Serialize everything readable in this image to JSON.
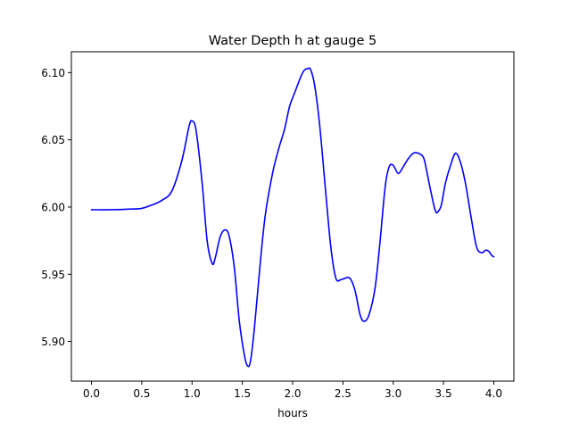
{
  "chart_data": {
    "type": "line",
    "title": "Water Depth h at gauge 5",
    "xlabel": "hours",
    "ylabel": "",
    "xlim": [
      -0.2,
      4.2
    ],
    "ylim": [
      5.8705,
      6.1155
    ],
    "grid": false,
    "legend": "none",
    "x_ticks": [
      0.0,
      0.5,
      1.0,
      1.5,
      2.0,
      2.5,
      3.0,
      3.5,
      4.0
    ],
    "x_tick_labels": [
      "0.0",
      "0.5",
      "1.0",
      "1.5",
      "2.0",
      "2.5",
      "3.0",
      "3.5",
      "4.0"
    ],
    "y_ticks": [
      5.9,
      5.95,
      6.0,
      6.05,
      6.1
    ],
    "y_tick_labels": [
      "5.90",
      "5.95",
      "6.00",
      "6.05",
      "6.10"
    ],
    "series": [
      {
        "color": "#0000ff",
        "x": [
          0.0,
          0.2,
          0.4,
          0.5,
          0.6,
          0.7,
          0.8,
          0.9,
          0.97,
          1.0,
          1.04,
          1.1,
          1.15,
          1.2,
          1.23,
          1.28,
          1.33,
          1.37,
          1.42,
          1.47,
          1.52,
          1.55,
          1.58,
          1.62,
          1.68,
          1.73,
          1.8,
          1.86,
          1.92,
          1.97,
          2.02,
          2.1,
          2.15,
          2.18,
          2.22,
          2.27,
          2.33,
          2.38,
          2.43,
          2.48,
          2.52,
          2.57,
          2.62,
          2.67,
          2.71,
          2.76,
          2.82,
          2.87,
          2.92,
          2.96,
          3.0,
          3.05,
          3.1,
          3.15,
          3.2,
          3.25,
          3.3,
          3.33,
          3.37,
          3.42,
          3.45,
          3.48,
          3.52,
          3.57,
          3.62,
          3.67,
          3.72,
          3.78,
          3.83,
          3.88,
          3.92,
          3.95,
          3.98,
          4.0
        ],
        "y": [
          5.998,
          5.998,
          5.9985,
          5.999,
          6.0015,
          6.005,
          6.012,
          6.035,
          6.06,
          6.064,
          6.057,
          6.018,
          5.975,
          5.958,
          5.962,
          5.978,
          5.983,
          5.978,
          5.955,
          5.915,
          5.89,
          5.882,
          5.885,
          5.91,
          5.96,
          5.995,
          6.025,
          6.043,
          6.058,
          6.075,
          6.085,
          6.1,
          6.103,
          6.102,
          6.09,
          6.06,
          6.01,
          5.97,
          5.947,
          5.946,
          5.947,
          5.947,
          5.938,
          5.92,
          5.915,
          5.92,
          5.94,
          5.975,
          6.015,
          6.03,
          6.031,
          6.025,
          6.03,
          6.036,
          6.04,
          6.04,
          6.037,
          6.028,
          6.013,
          5.997,
          5.997,
          6.002,
          6.018,
          6.031,
          6.04,
          6.033,
          6.017,
          5.99,
          5.97,
          5.966,
          5.968,
          5.967,
          5.964,
          5.963
        ]
      }
    ]
  }
}
